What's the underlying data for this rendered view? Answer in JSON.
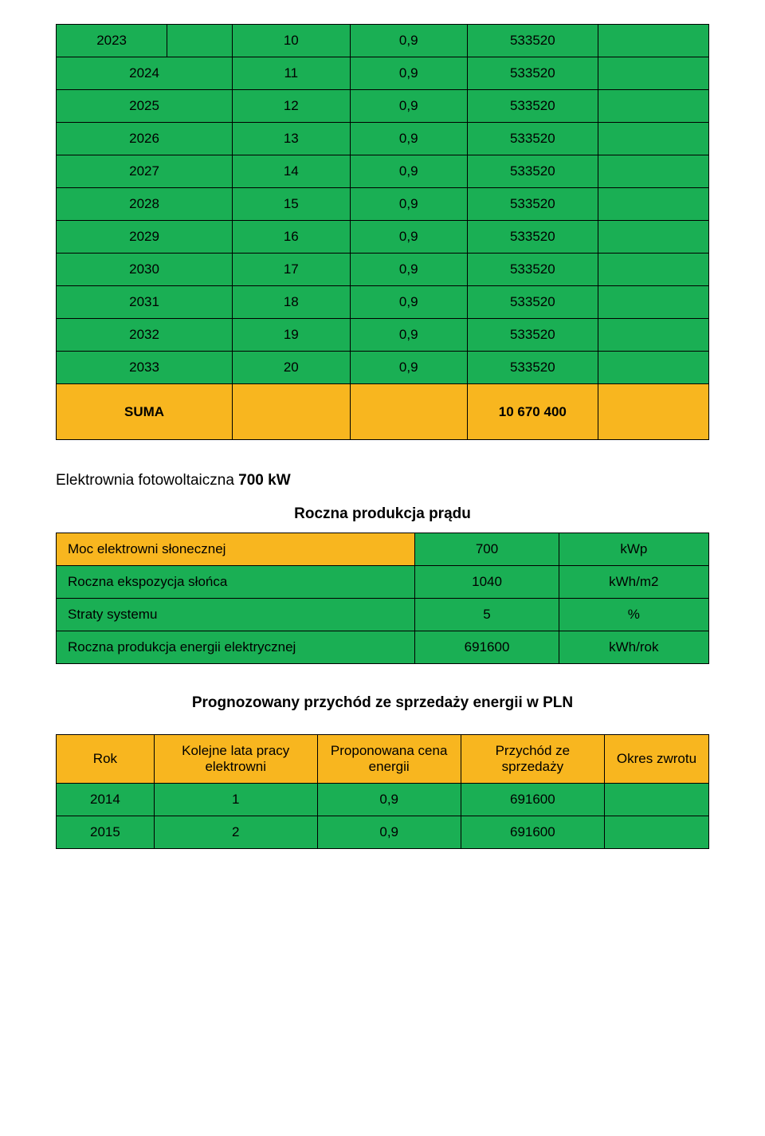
{
  "colors": {
    "green": "#1aaf54",
    "orange": "#f8b61f",
    "border": "#000000",
    "background": "#ffffff"
  },
  "table1": {
    "rows": [
      [
        "2023",
        "10",
        "0,9",
        "533520",
        ""
      ],
      [
        "2024",
        "11",
        "0,9",
        "533520",
        ""
      ],
      [
        "2025",
        "12",
        "0,9",
        "533520",
        ""
      ],
      [
        "2026",
        "13",
        "0,9",
        "533520",
        ""
      ],
      [
        "2027",
        "14",
        "0,9",
        "533520",
        ""
      ],
      [
        "2028",
        "15",
        "0,9",
        "533520",
        ""
      ],
      [
        "2029",
        "16",
        "0,9",
        "533520",
        ""
      ],
      [
        "2030",
        "17",
        "0,9",
        "533520",
        ""
      ],
      [
        "2031",
        "18",
        "0,9",
        "533520",
        ""
      ],
      [
        "2032",
        "19",
        "0,9",
        "533520",
        ""
      ],
      [
        "2033",
        "20",
        "0,9",
        "533520",
        ""
      ]
    ],
    "sum_label": "SUMA",
    "sum_value": "10 670 400"
  },
  "section1": {
    "title_prefix": "Elektrownia fotowoltaiczna ",
    "title_bold": "700 kW",
    "subtitle": "Roczna produkcja prądu"
  },
  "table2": {
    "rows": [
      {
        "label": "Moc elektrowni słonecznej",
        "value": "700",
        "unit": "kWp"
      },
      {
        "label": "Roczna ekspozycja słońca",
        "value": "1040",
        "unit": "kWh/m2"
      },
      {
        "label": "Straty systemu",
        "value": "5",
        "unit": "%"
      },
      {
        "label": "Roczna produkcja energii elektrycznej",
        "value": "691600",
        "unit": "kWh/rok"
      }
    ]
  },
  "section2": {
    "title": "Prognozowany przychód ze sprzedaży energii w PLN"
  },
  "table3": {
    "headers": [
      "Rok",
      "Kolejne lata pracy elektrowni",
      "Proponowana cena energii",
      "Przychód ze sprzedaży",
      "Okres zwrotu"
    ],
    "rows": [
      [
        "2014",
        "1",
        "0,9",
        "691600",
        ""
      ],
      [
        "2015",
        "2",
        "0,9",
        "691600",
        ""
      ]
    ]
  }
}
